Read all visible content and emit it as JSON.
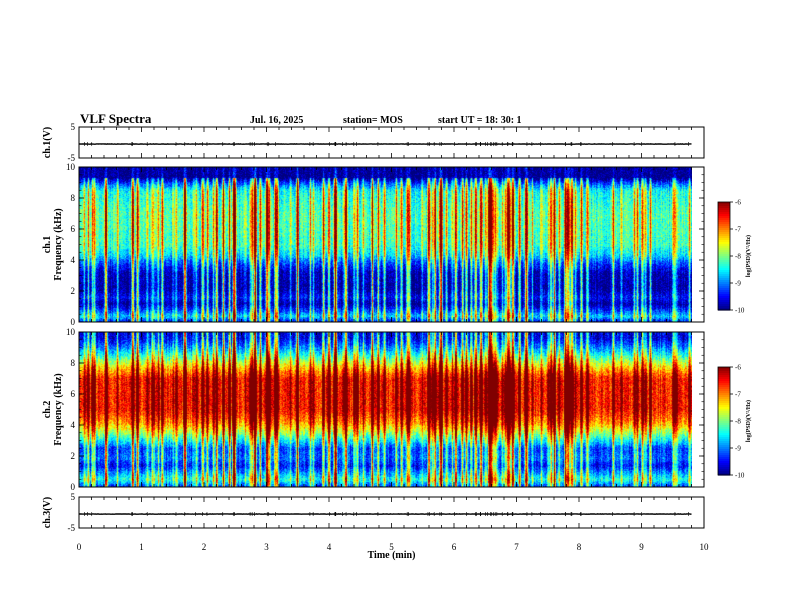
{
  "header": {
    "title": "VLF Spectra",
    "date": "Jul. 16, 2025",
    "station": "station= MOS",
    "start": "start UT =  18: 30: 1"
  },
  "chart_data": {
    "type": "heatmap",
    "title": "VLF Spectra",
    "xlabel": "Time (min)",
    "xlim": [
      0,
      10
    ],
    "x_ticks": [
      "0",
      "1",
      "2",
      "3",
      "4",
      "5",
      "6",
      "7",
      "8",
      "9",
      "10"
    ],
    "data_end_min": 9.8,
    "panels": [
      {
        "name": "ch1-waveform",
        "type": "line",
        "ylabel": "ch.1(V)",
        "ylim": [
          -5,
          5
        ],
        "y_ticks": [
          "5",
          "-5"
        ],
        "level": -0.5
      },
      {
        "name": "ch1-spectrogram",
        "type": "heatmap",
        "ylabel": [
          "ch.1",
          "Frequency (kHz)"
        ],
        "ylim": [
          0,
          10
        ],
        "y_ticks": [
          "0",
          "2",
          "4",
          "6",
          "8",
          "10"
        ],
        "color_label": "log(PSD)(V²/Hz)",
        "color_range": [
          -10,
          -6
        ],
        "color_ticks": [
          "-6",
          "-7",
          "-8",
          "-9",
          "-10"
        ],
        "profile": [
          {
            "f": 0.0,
            "v": -9.6
          },
          {
            "f": 0.4,
            "v": -8.7
          },
          {
            "f": 0.7,
            "v": -9.2
          },
          {
            "f": 1.2,
            "v": -9.9
          },
          {
            "f": 1.6,
            "v": -9.5
          },
          {
            "f": 2.2,
            "v": -9.9
          },
          {
            "f": 3.2,
            "v": -9.8
          },
          {
            "f": 3.9,
            "v": -9.2
          },
          {
            "f": 4.3,
            "v": -8.7
          },
          {
            "f": 5.0,
            "v": -8.3
          },
          {
            "f": 7.0,
            "v": -8.2
          },
          {
            "f": 8.5,
            "v": -8.5
          },
          {
            "f": 9.0,
            "v": -9.3
          },
          {
            "f": 9.3,
            "v": -10.0
          },
          {
            "f": 10.0,
            "v": -10.0
          }
        ]
      },
      {
        "name": "ch2-spectrogram",
        "type": "heatmap",
        "ylabel": [
          "ch.2",
          "Frequency (kHz)"
        ],
        "ylim": [
          0,
          10
        ],
        "y_ticks": [
          "0",
          "2",
          "4",
          "6",
          "8",
          "10"
        ],
        "color_label": "log(PSD)(V²/Hz)",
        "color_range": [
          -10,
          -6
        ],
        "color_ticks": [
          "-6",
          "-7",
          "-8",
          "-9",
          "-10"
        ],
        "profile": [
          {
            "f": 0.0,
            "v": -9.4
          },
          {
            "f": 0.5,
            "v": -8.4
          },
          {
            "f": 1.0,
            "v": -9.0
          },
          {
            "f": 1.4,
            "v": -9.5
          },
          {
            "f": 1.9,
            "v": -9.1
          },
          {
            "f": 2.5,
            "v": -9.3
          },
          {
            "f": 3.0,
            "v": -8.6
          },
          {
            "f": 3.6,
            "v": -7.8
          },
          {
            "f": 4.2,
            "v": -7.1
          },
          {
            "f": 5.0,
            "v": -6.6
          },
          {
            "f": 7.0,
            "v": -6.6
          },
          {
            "f": 7.6,
            "v": -7.2
          },
          {
            "f": 8.3,
            "v": -8.1
          },
          {
            "f": 9.0,
            "v": -9.0
          },
          {
            "f": 9.6,
            "v": -9.6
          },
          {
            "f": 10.0,
            "v": -9.6
          }
        ]
      },
      {
        "name": "ch3-waveform",
        "type": "line",
        "ylabel": "ch.3(V)",
        "ylim": [
          -5,
          5
        ],
        "y_ticks": [
          "5",
          "-5"
        ],
        "level": -0.5
      }
    ]
  }
}
